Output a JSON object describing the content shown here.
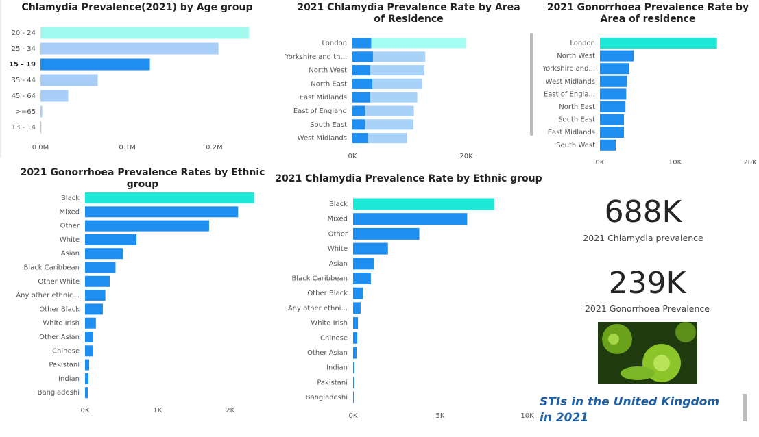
{
  "chart_data": [
    {
      "type": "bar",
      "orientation": "horizontal",
      "title": "Chlamydia Prevalence(2021) by Age group",
      "categories": [
        "20 - 24",
        "25 - 34",
        "15 - 19",
        "35 - 44",
        "45 - 64",
        ">=65",
        "13 - 14"
      ],
      "values": [
        240000,
        205000,
        126000,
        66000,
        32000,
        2000,
        1000
      ],
      "colors": [
        "#a1f9ee",
        "#a8cef7",
        "#1f8ef1",
        "#a8cef7",
        "#a8cef7",
        "#a8cef7",
        "#a8cef7"
      ],
      "xlim": [
        0,
        240000
      ],
      "xticks": [
        {
          "value": 0,
          "label": "0.0M"
        },
        {
          "value": 100000,
          "label": "0.1M"
        },
        {
          "value": 200000,
          "label": "0.2M"
        }
      ]
    },
    {
      "type": "bar",
      "orientation": "horizontal",
      "barmode": "overlay",
      "title": "2021 Chlamydia Prevalence Rate by Area of Residence",
      "categories": [
        "London",
        "Yorkshire and th...",
        "North West",
        "North East",
        "East Midlands",
        "East of England",
        "South East",
        "West Midlands"
      ],
      "series": [
        {
          "colors": [
            "#a6fdf2",
            "#a9d2f9",
            "#a9d2f9",
            "#a9d2f9",
            "#a9d2f9",
            "#a9d2f9",
            "#a9d2f9",
            "#a9d2f9"
          ],
          "values": [
            20000,
            12800,
            12650,
            12300,
            11400,
            10800,
            10700,
            9600
          ]
        },
        {
          "color": "#1f8ef1",
          "values": [
            3300,
            3600,
            3100,
            3500,
            3100,
            2200,
            2200,
            2700
          ]
        }
      ],
      "xlim": [
        0,
        20000
      ],
      "xticks": [
        {
          "value": 0,
          "label": "0K"
        },
        {
          "value": 20000,
          "label": "20K"
        }
      ]
    },
    {
      "type": "bar",
      "orientation": "horizontal",
      "title": "2021 Gonorrhoea Prevalence Rate by Area of residence",
      "categories": [
        "London",
        "North West",
        "Yorkshire and...",
        "West Midlands",
        "East of Engla...",
        "North East",
        "South East",
        "East Midlands",
        "South West"
      ],
      "values": [
        15600,
        4500,
        3900,
        3600,
        3500,
        3400,
        3200,
        3200,
        2100
      ],
      "colors": [
        "#1de9d6",
        "#1f8ef1",
        "#1f8ef1",
        "#1f8ef1",
        "#1f8ef1",
        "#1f8ef1",
        "#1f8ef1",
        "#1f8ef1",
        "#1f8ef1"
      ],
      "xlim": [
        0,
        20000
      ],
      "xticks": [
        {
          "value": 0,
          "label": "0K"
        },
        {
          "value": 10000,
          "label": "10K"
        },
        {
          "value": 20000,
          "label": "20K"
        }
      ]
    },
    {
      "type": "bar",
      "orientation": "horizontal",
      "title": "2021 Gonorrhoea Prevalence Rates by Ethnic group",
      "categories": [
        "Black",
        "Mixed",
        "Other",
        "White",
        "Asian",
        "Black Caribbean",
        "Other White",
        "Any other ethnic...",
        "Other Black",
        "White Irish",
        "Other Asian",
        "Chinese",
        "Pakistani",
        "Indian",
        "Bangladeshi"
      ],
      "values": [
        2330,
        2110,
        1710,
        710,
        520,
        420,
        340,
        280,
        245,
        150,
        113,
        113,
        57,
        47,
        38
      ],
      "colors": [
        "#1de9d6",
        "#1f8ef1",
        "#1f8ef1",
        "#1f8ef1",
        "#1f8ef1",
        "#1f8ef1",
        "#1f8ef1",
        "#1f8ef1",
        "#1f8ef1",
        "#1f8ef1",
        "#1f8ef1",
        "#1f8ef1",
        "#1f8ef1",
        "#1f8ef1",
        "#1f8ef1"
      ],
      "xlim": [
        0,
        2400
      ],
      "xticks": [
        {
          "value": 0,
          "label": "0K"
        },
        {
          "value": 1000,
          "label": "1K"
        },
        {
          "value": 2000,
          "label": "2K"
        }
      ]
    },
    {
      "type": "bar",
      "orientation": "horizontal",
      "title": "2021 Chlamydia Prevalence Rate by Ethnic group",
      "categories": [
        "Black",
        "Mixed",
        "Other",
        "White",
        "Asian",
        "Black Caribbean",
        "Other Black",
        "Any other ethni...",
        "White Irish",
        "Chinese",
        "Other Asian",
        "Indian",
        "Pakistani",
        "Bangladeshi"
      ],
      "values": [
        8100,
        6550,
        3800,
        2000,
        1180,
        1020,
        550,
        430,
        280,
        240,
        200,
        80,
        70,
        50
      ],
      "colors": [
        "#1de9d6",
        "#1f8ef1",
        "#1f8ef1",
        "#1f8ef1",
        "#1f8ef1",
        "#1f8ef1",
        "#1f8ef1",
        "#1f8ef1",
        "#1f8ef1",
        "#1f8ef1",
        "#1f8ef1",
        "#1f8ef1",
        "#1f8ef1",
        "#1f8ef1"
      ],
      "xlim": [
        0,
        10000
      ],
      "xticks": [
        {
          "value": 0,
          "label": "0K"
        },
        {
          "value": 5000,
          "label": "5K"
        },
        {
          "value": 10000,
          "label": "10K"
        }
      ]
    }
  ],
  "cards": [
    {
      "value": "688K",
      "label": "2021 Chlamydia prevalence"
    },
    {
      "value": "239K",
      "label": "2021 Gonorrhoea Prevalence"
    }
  ],
  "footer_title": "STIs in the United Kingdom in 2021"
}
